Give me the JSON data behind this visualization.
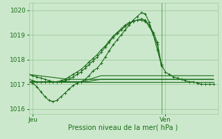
{
  "xlabel": "Pression niveau de la mer( hPa )",
  "bg_color": "#cce8cc",
  "grid_color": "#99cc99",
  "line_color": "#1a6e1a",
  "ylim": [
    1015.8,
    1020.3
  ],
  "xlim": [
    0,
    47
  ],
  "yticks": [
    1016,
    1017,
    1018,
    1019,
    1020
  ],
  "ven_x": 33,
  "xtick_labels": [
    "Jeu",
    "Ven"
  ],
  "xtick_positions": [
    1,
    34
  ],
  "series": [
    {
      "x": [
        0,
        1,
        2,
        3,
        4,
        5,
        6,
        7,
        8,
        9,
        10,
        11,
        12,
        13,
        14,
        15,
        16,
        17,
        18,
        19,
        20,
        21,
        22,
        23,
        24,
        25,
        26,
        27,
        28,
        29,
        30,
        31,
        32,
        33,
        34,
        35,
        36,
        37,
        38,
        39,
        40,
        41,
        42,
        43,
        44,
        45,
        46
      ],
      "y": [
        1017.1,
        1017.05,
        1016.9,
        1016.7,
        1016.5,
        1016.35,
        1016.3,
        1016.35,
        1016.5,
        1016.65,
        1016.8,
        1016.95,
        1017.05,
        1017.1,
        1017.2,
        1017.35,
        1017.55,
        1017.65,
        1017.85,
        1018.1,
        1018.35,
        1018.6,
        1018.8,
        1019.0,
        1019.2,
        1019.4,
        1019.6,
        1019.75,
        1019.9,
        1019.85,
        1019.5,
        1019.0,
        1018.4,
        1017.8,
        1017.5,
        1017.4,
        1017.3,
        1017.25,
        1017.2,
        1017.15,
        1017.1,
        1017.1,
        1017.05,
        1017.0,
        1017.0,
        1017.0,
        1017.0
      ],
      "marker": true
    },
    {
      "x": [
        0,
        1,
        2,
        3,
        4,
        5,
        6,
        7,
        8,
        9,
        10,
        11,
        12,
        13,
        14,
        15,
        16,
        17,
        18,
        19,
        20,
        21,
        22,
        23,
        24,
        25,
        26,
        27,
        28,
        29,
        30,
        31,
        32,
        33
      ],
      "y": [
        1017.4,
        1017.35,
        1017.3,
        1017.25,
        1017.2,
        1017.15,
        1017.1,
        1017.1,
        1017.1,
        1017.15,
        1017.2,
        1017.3,
        1017.4,
        1017.5,
        1017.65,
        1017.8,
        1017.95,
        1018.1,
        1018.3,
        1018.5,
        1018.7,
        1018.9,
        1019.05,
        1019.2,
        1019.35,
        1019.45,
        1019.55,
        1019.6,
        1019.65,
        1019.6,
        1019.4,
        1019.1,
        1018.7,
        1017.8
      ],
      "marker": true
    },
    {
      "x": [
        0,
        1,
        2,
        3,
        4,
        5,
        6,
        7,
        8,
        9,
        10,
        11,
        12,
        13,
        14,
        15,
        16,
        17,
        18,
        19,
        20,
        21,
        22,
        23,
        24,
        25,
        26,
        27,
        28,
        29,
        30,
        31,
        32,
        33
      ],
      "y": [
        1017.2,
        1017.15,
        1017.1,
        1017.1,
        1017.1,
        1017.1,
        1017.1,
        1017.1,
        1017.15,
        1017.2,
        1017.3,
        1017.4,
        1017.5,
        1017.6,
        1017.75,
        1017.9,
        1018.05,
        1018.2,
        1018.4,
        1018.55,
        1018.75,
        1018.95,
        1019.1,
        1019.25,
        1019.4,
        1019.5,
        1019.55,
        1019.6,
        1019.6,
        1019.55,
        1019.35,
        1019.0,
        1018.6,
        1017.75
      ],
      "marker": true
    },
    {
      "x": [
        0,
        1,
        2,
        3,
        4,
        5,
        6,
        7,
        8,
        9,
        10,
        11,
        12,
        13,
        14,
        15,
        16,
        17,
        18,
        19,
        20,
        21,
        22,
        23,
        24,
        25,
        26,
        27,
        28,
        29,
        30,
        31,
        32,
        33,
        34,
        35,
        36,
        37,
        38,
        39,
        40,
        41,
        42,
        43,
        44,
        45,
        46
      ],
      "y": [
        1017.1,
        1017.1,
        1017.1,
        1017.1,
        1017.1,
        1017.1,
        1017.1,
        1017.1,
        1017.1,
        1017.1,
        1017.1,
        1017.1,
        1017.1,
        1017.1,
        1017.15,
        1017.2,
        1017.25,
        1017.3,
        1017.35,
        1017.35,
        1017.35,
        1017.35,
        1017.35,
        1017.35,
        1017.35,
        1017.35,
        1017.35,
        1017.35,
        1017.35,
        1017.35,
        1017.35,
        1017.35,
        1017.35,
        1017.35,
        1017.35,
        1017.35,
        1017.35,
        1017.35,
        1017.35,
        1017.35,
        1017.35,
        1017.35,
        1017.35,
        1017.35,
        1017.35,
        1017.35,
        1017.35
      ],
      "marker": false
    },
    {
      "x": [
        0,
        1,
        2,
        3,
        4,
        5,
        6,
        7,
        8,
        9,
        10,
        11,
        12,
        13,
        14,
        15,
        16,
        17,
        18,
        19,
        20,
        21,
        22,
        23,
        24,
        25,
        26,
        27,
        28,
        29,
        30,
        31,
        32,
        33,
        34,
        35,
        36,
        37,
        38,
        39,
        40,
        41,
        42,
        43,
        44,
        45,
        46
      ],
      "y": [
        1017.1,
        1017.1,
        1017.1,
        1017.1,
        1017.1,
        1017.1,
        1017.1,
        1017.1,
        1017.1,
        1017.1,
        1017.1,
        1017.1,
        1017.1,
        1017.1,
        1017.1,
        1017.12,
        1017.15,
        1017.18,
        1017.2,
        1017.2,
        1017.2,
        1017.2,
        1017.2,
        1017.2,
        1017.2,
        1017.2,
        1017.2,
        1017.2,
        1017.2,
        1017.2,
        1017.2,
        1017.2,
        1017.2,
        1017.2,
        1017.2,
        1017.2,
        1017.2,
        1017.2,
        1017.2,
        1017.2,
        1017.2,
        1017.2,
        1017.2,
        1017.2,
        1017.2,
        1017.2,
        1017.2
      ],
      "marker": false
    },
    {
      "x": [
        0,
        1,
        2,
        3,
        4,
        5,
        6,
        7,
        8,
        9,
        10,
        11,
        12,
        13,
        14,
        15,
        16,
        17,
        18,
        19,
        20,
        21,
        22,
        23,
        24,
        25,
        26,
        27,
        28,
        29,
        30,
        31,
        32,
        33,
        34,
        35,
        36,
        37,
        38,
        39,
        40,
        41,
        42,
        43,
        44,
        45,
        46
      ],
      "y": [
        1017.1,
        1017.1,
        1017.1,
        1017.1,
        1017.1,
        1017.1,
        1017.1,
        1017.1,
        1017.1,
        1017.1,
        1017.1,
        1017.1,
        1017.1,
        1017.1,
        1017.1,
        1017.1,
        1017.1,
        1017.1,
        1017.1,
        1017.1,
        1017.1,
        1017.1,
        1017.1,
        1017.1,
        1017.1,
        1017.1,
        1017.1,
        1017.1,
        1017.1,
        1017.1,
        1017.1,
        1017.1,
        1017.1,
        1017.1,
        1017.1,
        1017.1,
        1017.1,
        1017.1,
        1017.1,
        1017.1,
        1017.1,
        1017.1,
        1017.1,
        1017.1,
        1017.1,
        1017.1,
        1017.1
      ],
      "marker": false
    },
    {
      "x": [
        0,
        1,
        2,
        3,
        4,
        5,
        6,
        7,
        8,
        9,
        10,
        11,
        12,
        13,
        14,
        15,
        16,
        17,
        18,
        19,
        20,
        21,
        22,
        23,
        24,
        25,
        26,
        27,
        28,
        29,
        30,
        31,
        32,
        33,
        34,
        35,
        36,
        37,
        38,
        39,
        40,
        41,
        42,
        43,
        44,
        45,
        46
      ],
      "y": [
        1017.4,
        1017.38,
        1017.36,
        1017.34,
        1017.32,
        1017.3,
        1017.28,
        1017.26,
        1017.24,
        1017.22,
        1017.2,
        1017.2,
        1017.2,
        1017.2,
        1017.2,
        1017.2,
        1017.2,
        1017.2,
        1017.2,
        1017.2,
        1017.2,
        1017.2,
        1017.2,
        1017.2,
        1017.2,
        1017.2,
        1017.2,
        1017.2,
        1017.2,
        1017.2,
        1017.2,
        1017.2,
        1017.2,
        1017.2,
        1017.2,
        1017.2,
        1017.2,
        1017.2,
        1017.2,
        1017.2,
        1017.2,
        1017.2,
        1017.2,
        1017.2,
        1017.2,
        1017.2,
        1017.2
      ],
      "marker": false
    }
  ]
}
